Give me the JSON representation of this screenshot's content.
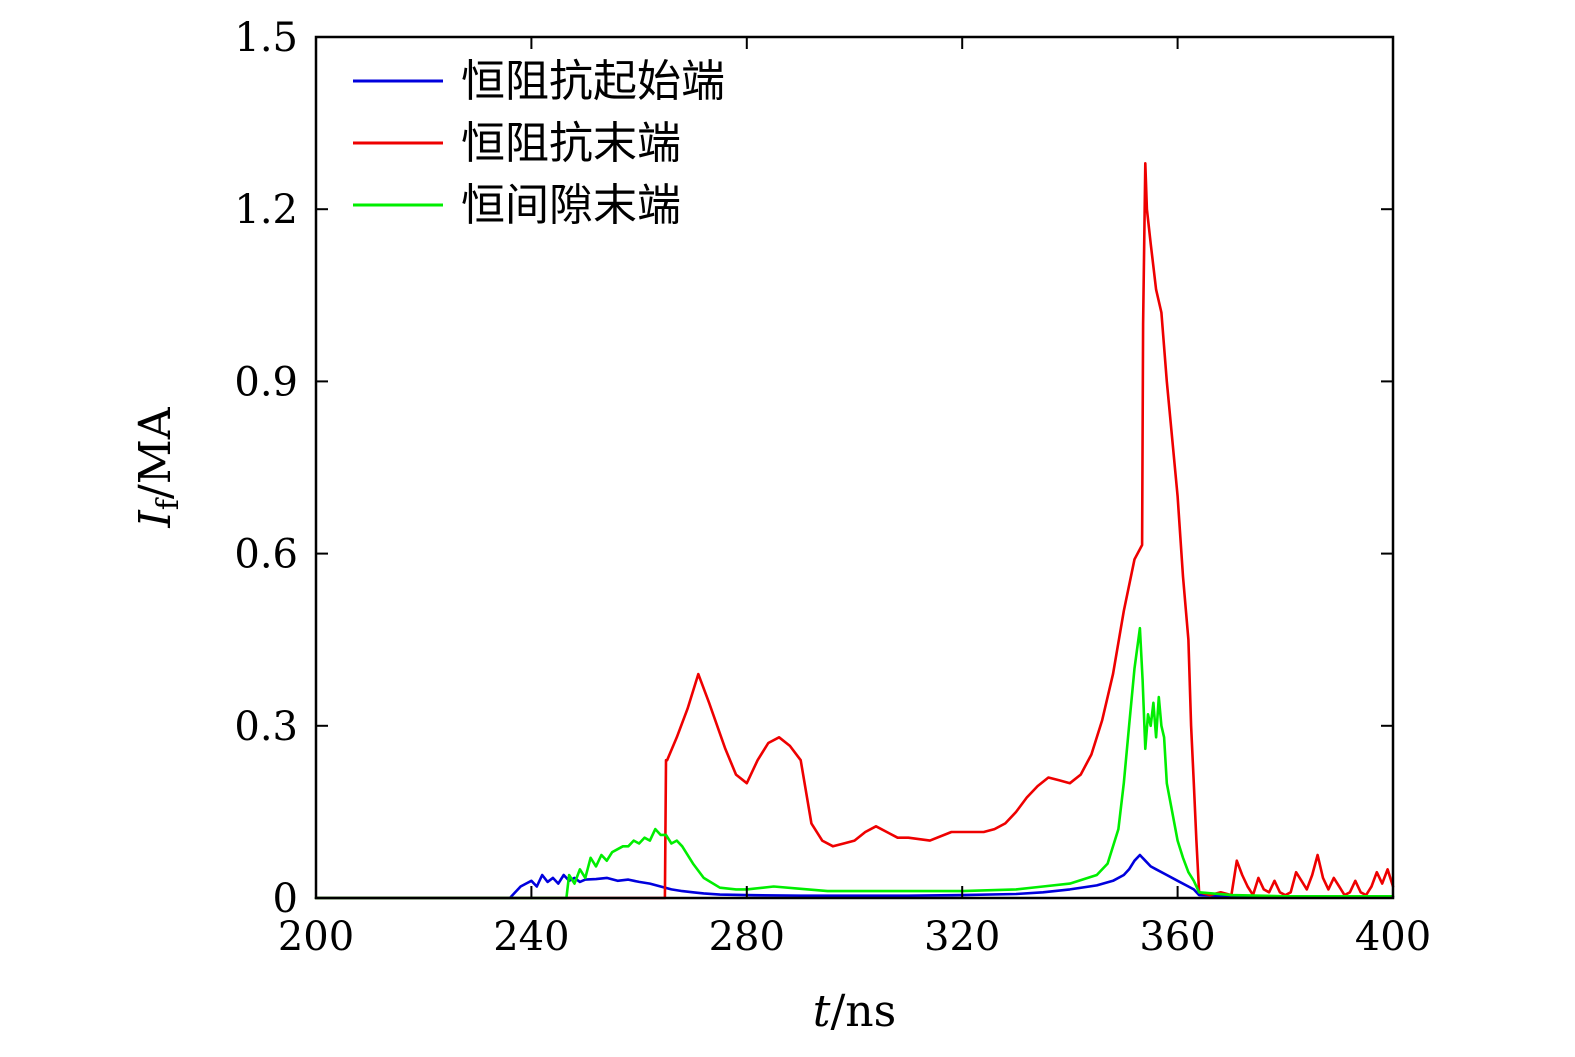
{
  "chart_data": {
    "type": "line",
    "title": "",
    "xlabel": {
      "var": "t",
      "unit": "/ns"
    },
    "ylabel": {
      "var": "I",
      "sub": "f",
      "unit": "/MA"
    },
    "xlim": [
      200,
      400
    ],
    "ylim": [
      0,
      1.5
    ],
    "xticks": [
      200,
      240,
      280,
      320,
      360,
      400
    ],
    "yticks": [
      0,
      0.3,
      0.6,
      0.9,
      1.2,
      1.5
    ],
    "xtick_labels": [
      "200",
      "240",
      "280",
      "320",
      "360",
      "400"
    ],
    "ytick_labels": [
      "0",
      "0.3",
      "0.6",
      "0.9",
      "1.2",
      "1.5"
    ],
    "grid": false,
    "legend_position": "top-left",
    "series": [
      {
        "name": "恒阻抗起始端",
        "color": "#0000dd",
        "x": [
          200,
          236,
          237,
          238,
          239,
          240,
          241,
          242,
          243,
          244,
          245,
          246,
          247,
          248,
          249,
          250,
          252,
          254,
          256,
          258,
          260,
          262,
          264,
          266,
          268,
          270,
          272,
          275,
          280,
          290,
          300,
          310,
          320,
          330,
          335,
          340,
          345,
          348,
          350,
          351,
          352,
          353,
          354,
          355,
          356,
          358,
          360,
          362,
          363,
          364,
          370,
          380,
          390,
          400
        ],
        "y": [
          0,
          0,
          0.01,
          0.02,
          0.025,
          0.03,
          0.02,
          0.04,
          0.028,
          0.035,
          0.025,
          0.04,
          0.03,
          0.035,
          0.028,
          0.032,
          0.033,
          0.035,
          0.03,
          0.032,
          0.028,
          0.025,
          0.02,
          0.015,
          0.012,
          0.01,
          0.008,
          0.006,
          0.005,
          0.004,
          0.004,
          0.004,
          0.005,
          0.007,
          0.01,
          0.015,
          0.022,
          0.03,
          0.04,
          0.05,
          0.065,
          0.075,
          0.065,
          0.055,
          0.05,
          0.04,
          0.03,
          0.02,
          0.015,
          0.005,
          0.003,
          0.002,
          0.002,
          0.002
        ]
      },
      {
        "name": "恒阻抗末端",
        "color": "#ee0000",
        "x": [
          200,
          264.8,
          265,
          265.2,
          267,
          269,
          271,
          273,
          276,
          278,
          280,
          282,
          284,
          286,
          288,
          290,
          292,
          294,
          296,
          298,
          300,
          302,
          304,
          306,
          308,
          310,
          314,
          318,
          320,
          324,
          326,
          328,
          330,
          332,
          334,
          336,
          338,
          340,
          342,
          344,
          346,
          348,
          350,
          352,
          353.4,
          353.6,
          354,
          354.3,
          355,
          356,
          357,
          358,
          359,
          360,
          361,
          362,
          362.5,
          363,
          363.5,
          364,
          366,
          368,
          370,
          371,
          372,
          373,
          374,
          375,
          376,
          377,
          378,
          379,
          380,
          381,
          382,
          383,
          384,
          385,
          386,
          387,
          388,
          389,
          390,
          391,
          392,
          393,
          394,
          395,
          396,
          397,
          398,
          399,
          400
        ],
        "y": [
          0,
          0,
          0.24,
          0.24,
          0.28,
          0.33,
          0.39,
          0.34,
          0.26,
          0.215,
          0.2,
          0.24,
          0.27,
          0.28,
          0.265,
          0.24,
          0.13,
          0.1,
          0.09,
          0.095,
          0.1,
          0.115,
          0.125,
          0.115,
          0.105,
          0.105,
          0.1,
          0.115,
          0.115,
          0.115,
          0.12,
          0.13,
          0.15,
          0.175,
          0.195,
          0.21,
          0.205,
          0.2,
          0.215,
          0.25,
          0.31,
          0.39,
          0.5,
          0.59,
          0.615,
          1.0,
          1.28,
          1.2,
          1.14,
          1.06,
          1.02,
          0.9,
          0.8,
          0.7,
          0.56,
          0.45,
          0.3,
          0.2,
          0.1,
          0.01,
          0.005,
          0.01,
          0.005,
          0.065,
          0.04,
          0.02,
          0.005,
          0.035,
          0.015,
          0.01,
          0.03,
          0.01,
          0.005,
          0.01,
          0.045,
          0.03,
          0.015,
          0.04,
          0.075,
          0.035,
          0.015,
          0.035,
          0.02,
          0.005,
          0.01,
          0.03,
          0.01,
          0.005,
          0.02,
          0.045,
          0.025,
          0.05,
          0.02
        ]
      },
      {
        "name": "恒间隙末端",
        "color": "#00ee00",
        "x": [
          200,
          246.5,
          247,
          248,
          249,
          250,
          251,
          252,
          253,
          254,
          255,
          256,
          257,
          258,
          259,
          260,
          261,
          262,
          263,
          264,
          265,
          266,
          267,
          268,
          270,
          272,
          275,
          278,
          280,
          285,
          290,
          295,
          300,
          310,
          320,
          330,
          335,
          340,
          345,
          347,
          349,
          350,
          351,
          352,
          353,
          353.5,
          354,
          354.5,
          355,
          355.5,
          356,
          356.5,
          357,
          357.5,
          358,
          359,
          360,
          361,
          362,
          363,
          364,
          370,
          380,
          390,
          400
        ],
        "y": [
          0,
          0,
          0.04,
          0.025,
          0.05,
          0.035,
          0.07,
          0.055,
          0.075,
          0.065,
          0.08,
          0.085,
          0.09,
          0.09,
          0.1,
          0.095,
          0.105,
          0.1,
          0.12,
          0.11,
          0.11,
          0.095,
          0.1,
          0.09,
          0.06,
          0.035,
          0.018,
          0.015,
          0.015,
          0.02,
          0.016,
          0.012,
          0.012,
          0.012,
          0.012,
          0.015,
          0.02,
          0.025,
          0.04,
          0.06,
          0.12,
          0.2,
          0.3,
          0.4,
          0.47,
          0.38,
          0.26,
          0.32,
          0.3,
          0.34,
          0.28,
          0.35,
          0.3,
          0.28,
          0.2,
          0.15,
          0.1,
          0.07,
          0.045,
          0.03,
          0.01,
          0.005,
          0.003,
          0.003,
          0.003
        ]
      }
    ]
  }
}
